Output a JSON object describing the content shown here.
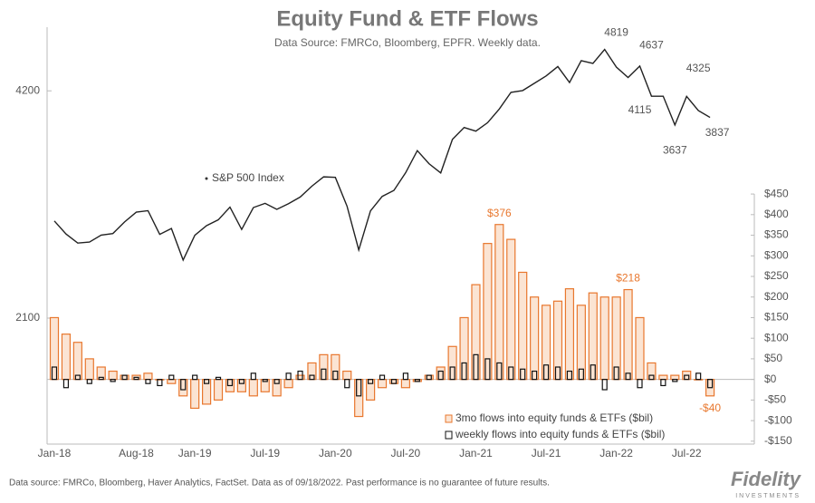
{
  "chart_data": {
    "type": "bar",
    "title": "Equity Fund & ETF Flows",
    "subtitle": "Data Source: FMRCo, Bloomberg, EPFR.  Weekly data.",
    "footnote": "Data source: FMRCo, Bloomberg, Haver Analytics, FactSet. Data as of 09/18/2022. Past performance is no guarantee of future results.",
    "logo": "Fidelity",
    "logo_sub": "INVESTMENTS",
    "categories": [
      "Jan-18",
      null,
      null,
      null,
      null,
      null,
      null,
      "Aug-18",
      null,
      null,
      null,
      null,
      "Jan-19",
      null,
      null,
      null,
      null,
      null,
      "Jul-19",
      null,
      null,
      null,
      null,
      null,
      "Jan-20",
      null,
      null,
      null,
      null,
      null,
      "Jul-20",
      null,
      null,
      null,
      null,
      null,
      "Jan-21",
      null,
      null,
      null,
      null,
      null,
      "Jul-21",
      null,
      null,
      null,
      null,
      null,
      "Jan-22",
      null,
      null,
      null,
      null,
      null,
      "Jul-22",
      null,
      null
    ],
    "ylim": [
      1430,
      5100
    ],
    "yticks": [
      2100,
      4200
    ],
    "log_scale": true,
    "y2lim": [
      -157,
      855
    ],
    "y2ticks": [
      {
        "value": 450,
        "label": "$450"
      },
      {
        "value": 400,
        "label": "$400"
      },
      {
        "value": 350,
        "label": "$350"
      },
      {
        "value": 300,
        "label": "$300"
      },
      {
        "value": 250,
        "label": "$250"
      },
      {
        "value": 200,
        "label": "$200"
      },
      {
        "value": 150,
        "label": "$150"
      },
      {
        "value": 100,
        "label": "$100"
      },
      {
        "value": 50,
        "label": "$50"
      },
      {
        "value": 0,
        "label": "$0"
      },
      {
        "value": -50,
        "label": "-$50"
      },
      {
        "value": -100,
        "label": "-$100"
      },
      {
        "value": -150,
        "label": "-$150"
      }
    ],
    "grid": false,
    "legend": "lower right",
    "series": [
      {
        "name": "S&P 500 Index",
        "type": "line",
        "axis": "y",
        "color": "#222222",
        "values": [
          2824,
          2714,
          2640,
          2648,
          2705,
          2718,
          2816,
          2901,
          2914,
          2711,
          2760,
          2507,
          2704,
          2784,
          2834,
          2946,
          2752,
          2942,
          2980,
          2926,
          2977,
          3038,
          3141,
          3231,
          3226,
          2954,
          2585,
          2912,
          3044,
          3100,
          3271,
          3500,
          3363,
          3270,
          3622,
          3756,
          3714,
          3811,
          3973,
          4181,
          4204,
          4298,
          4395,
          4523,
          4308,
          4605,
          4567,
          4766,
          4516,
          4374,
          4530,
          4132,
          4132,
          3785,
          4130,
          3955,
          3873
        ],
        "annotations": [
          4819,
          4637,
          4115,
          4325,
          3637,
          3837
        ]
      },
      {
        "name": "3mo flows into equity funds & ETFs ($bil)",
        "type": "bar",
        "axis": "y2",
        "color": "#e8772e",
        "values": [
          150,
          110,
          90,
          50,
          30,
          20,
          10,
          10,
          15,
          0,
          -10,
          -40,
          -70,
          -60,
          -50,
          -30,
          -30,
          -40,
          -30,
          -40,
          -20,
          10,
          40,
          60,
          60,
          20,
          -90,
          -50,
          -20,
          -10,
          -20,
          -5,
          10,
          30,
          80,
          150,
          230,
          330,
          376,
          340,
          260,
          200,
          180,
          190,
          220,
          180,
          210,
          200,
          200,
          218,
          150,
          40,
          10,
          10,
          20,
          0,
          -40
        ],
        "value_labels": [
          null,
          null,
          null,
          null,
          null,
          null,
          null,
          null,
          null,
          null,
          null,
          null,
          null,
          null,
          null,
          null,
          null,
          null,
          null,
          null,
          null,
          null,
          null,
          null,
          null,
          null,
          null,
          null,
          null,
          null,
          null,
          null,
          null,
          null,
          null,
          null,
          null,
          null,
          "$376",
          null,
          null,
          null,
          null,
          null,
          null,
          null,
          null,
          null,
          null,
          "$218",
          null,
          null,
          null,
          null,
          null,
          null,
          "-$40"
        ]
      },
      {
        "name": "weekly flows into equity funds & ETFs ($bil)",
        "type": "bar",
        "axis": "y2",
        "color": "#111111",
        "values": [
          30,
          -20,
          10,
          -10,
          5,
          -5,
          10,
          5,
          -10,
          -15,
          10,
          -25,
          10,
          -10,
          5,
          -15,
          -10,
          15,
          -5,
          -10,
          15,
          20,
          10,
          25,
          20,
          -20,
          -40,
          -10,
          10,
          -10,
          15,
          -5,
          10,
          20,
          30,
          40,
          60,
          50,
          40,
          30,
          25,
          20,
          35,
          30,
          20,
          25,
          35,
          -25,
          30,
          15,
          -20,
          10,
          -15,
          -5,
          10,
          15,
          -20
        ]
      }
    ]
  }
}
